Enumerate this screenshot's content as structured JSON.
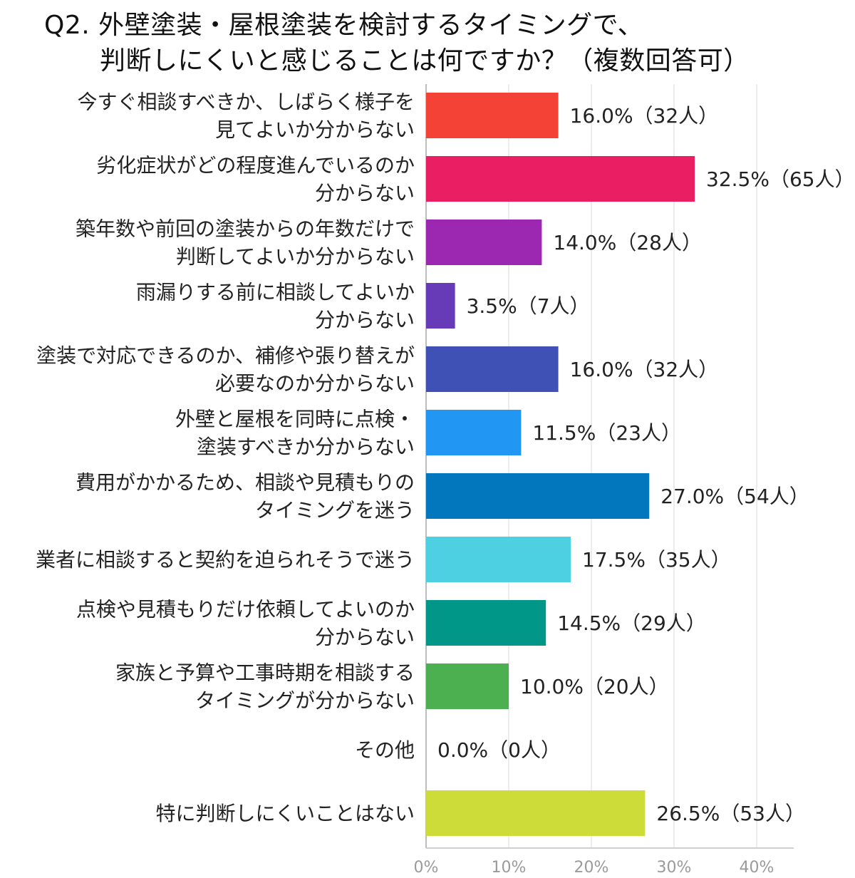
{
  "chart_data": {
    "type": "bar",
    "orientation": "horizontal",
    "title_lines": [
      "Q2. 外壁塗装・屋根塗装を検討するタイミングで、",
      "判断しにくいと感じることは何ですか？（複数回答可）"
    ],
    "categories": [
      [
        "今すぐ相談すべきか、しばらく様子を",
        "見てよいか分からない"
      ],
      [
        "劣化症状がどの程度進んでいるのか",
        "分からない"
      ],
      [
        "築年数や前回の塗装からの年数だけで",
        "判断してよいか分からない"
      ],
      [
        "雨漏りする前に相談してよいか",
        "分からない"
      ],
      [
        "塗装で対応できるのか、補修や張り替えが",
        "必要なのか分からない"
      ],
      [
        "外壁と屋根を同時に点検・",
        "塗装すべきか分からない"
      ],
      [
        "費用がかかるため、相談や見積もりの",
        "タイミングを迷う"
      ],
      [
        "業者に相談すると契約を迫られそうで迷う"
      ],
      [
        "点検や見積もりだけ依頼してよいのか",
        "分からない"
      ],
      [
        "家族と予算や工事時期を相談する",
        "タイミングが分からない"
      ],
      [
        "その他"
      ],
      [
        "特に判断しにくいことはない"
      ]
    ],
    "values": [
      16.0,
      32.5,
      14.0,
      3.5,
      16.0,
      11.5,
      27.0,
      17.5,
      14.5,
      10.0,
      0.0,
      26.5
    ],
    "value_labels": [
      "16.0%（32人）",
      "32.5%（65人）",
      "14.0%（28人）",
      "3.5%（7人）",
      "16.0%（32人）",
      "11.5%（23人）",
      "27.0%（54人）",
      "17.5%（35人）",
      "14.5%（29人）",
      "10.0%（20人）",
      "0.0%（0人）",
      "26.5%（53人）"
    ],
    "colors": [
      "#f44336",
      "#e91e63",
      "#9c27b0",
      "#673ab7",
      "#3f51b5",
      "#2196f3",
      "#0277bd",
      "#4dd0e1",
      "#009688",
      "#4caf50",
      "#4caf50",
      "#cddc39"
    ],
    "xlim": [
      0,
      40
    ],
    "xticks": [
      0,
      10,
      20,
      30,
      40
    ],
    "xtick_labels": [
      "0%",
      "10%",
      "20%",
      "30%",
      "40%"
    ],
    "grid": true
  }
}
